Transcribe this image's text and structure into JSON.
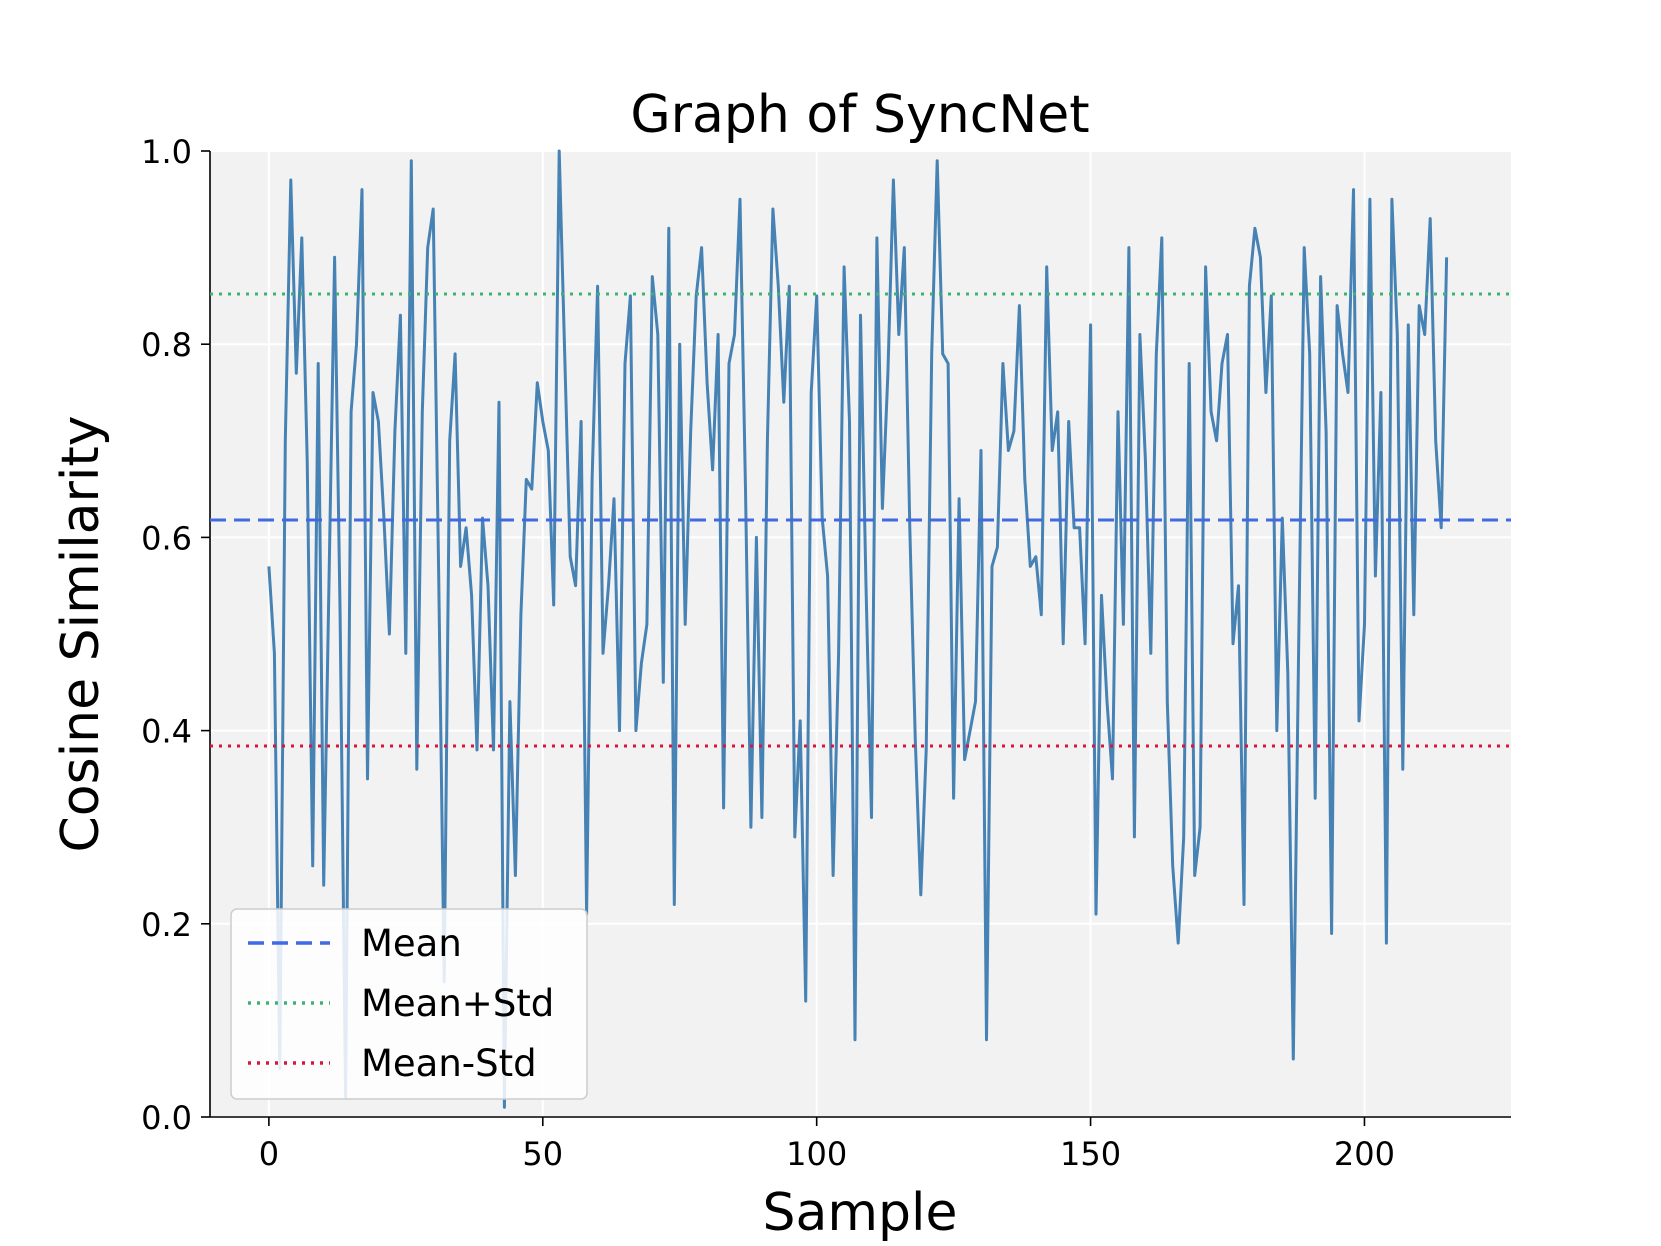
{
  "chart_data": {
    "type": "line",
    "title": "Graph of SyncNet",
    "xlabel": "Sample",
    "ylabel": "Cosine Similarity",
    "xlim": [
      -10.75,
      226.75
    ],
    "ylim": [
      0.0,
      1.0
    ],
    "xticks": [
      0,
      50,
      100,
      150,
      200
    ],
    "yticks": [
      0.0,
      0.2,
      0.4,
      0.6,
      0.8,
      1.0
    ],
    "xtick_labels": [
      "0",
      "50",
      "100",
      "150",
      "200"
    ],
    "ytick_labels": [
      "0.0",
      "0.2",
      "0.4",
      "0.6",
      "0.8",
      "1.0"
    ],
    "grid": true,
    "background": "#f2f2f2",
    "series": [
      {
        "color": "#4682b4",
        "x_start": 0,
        "values": [
          0.57,
          0.48,
          0.05,
          0.7,
          0.97,
          0.77,
          0.91,
          0.68,
          0.26,
          0.78,
          0.24,
          0.56,
          0.89,
          0.52,
          0.02,
          0.73,
          0.8,
          0.96,
          0.35,
          0.75,
          0.72,
          0.62,
          0.5,
          0.71,
          0.83,
          0.48,
          0.99,
          0.36,
          0.73,
          0.9,
          0.94,
          0.56,
          0.14,
          0.7,
          0.79,
          0.57,
          0.61,
          0.54,
          0.38,
          0.62,
          0.55,
          0.38,
          0.74,
          0.01,
          0.43,
          0.25,
          0.52,
          0.66,
          0.65,
          0.76,
          0.72,
          0.69,
          0.53,
          1.0,
          0.79,
          0.58,
          0.55,
          0.72,
          0.21,
          0.66,
          0.86,
          0.48,
          0.55,
          0.64,
          0.4,
          0.78,
          0.85,
          0.4,
          0.47,
          0.51,
          0.87,
          0.81,
          0.45,
          0.92,
          0.22,
          0.8,
          0.51,
          0.71,
          0.85,
          0.9,
          0.76,
          0.67,
          0.81,
          0.32,
          0.78,
          0.81,
          0.95,
          0.65,
          0.3,
          0.6,
          0.31,
          0.7,
          0.94,
          0.86,
          0.74,
          0.86,
          0.29,
          0.41,
          0.12,
          0.75,
          0.85,
          0.62,
          0.56,
          0.25,
          0.48,
          0.88,
          0.72,
          0.08,
          0.83,
          0.55,
          0.31,
          0.91,
          0.63,
          0.77,
          0.97,
          0.81,
          0.9,
          0.61,
          0.39,
          0.23,
          0.38,
          0.79,
          0.99,
          0.79,
          0.78,
          0.33,
          0.64,
          0.37,
          0.4,
          0.43,
          0.69,
          0.08,
          0.57,
          0.59,
          0.78,
          0.69,
          0.71,
          0.84,
          0.66,
          0.57,
          0.58,
          0.52,
          0.88,
          0.69,
          0.73,
          0.49,
          0.72,
          0.61,
          0.61,
          0.49,
          0.82,
          0.21,
          0.54,
          0.43,
          0.35,
          0.73,
          0.51,
          0.9,
          0.29,
          0.81,
          0.68,
          0.48,
          0.79,
          0.91,
          0.43,
          0.26,
          0.18,
          0.29,
          0.78,
          0.25,
          0.3,
          0.88,
          0.73,
          0.7,
          0.78,
          0.81,
          0.49,
          0.55,
          0.22,
          0.86,
          0.92,
          0.89,
          0.75,
          0.85,
          0.4,
          0.62,
          0.46,
          0.06,
          0.49,
          0.9,
          0.79,
          0.33,
          0.87,
          0.71,
          0.19,
          0.84,
          0.79,
          0.75,
          0.96,
          0.41,
          0.51,
          0.95,
          0.56,
          0.75,
          0.18,
          0.95,
          0.81,
          0.36,
          0.82,
          0.52,
          0.84,
          0.81,
          0.93,
          0.7,
          0.61,
          0.89
        ]
      },
      {
        "name": "Mean",
        "type": "hline",
        "value": 0.618,
        "color": "#4169e1",
        "style": "dashed"
      },
      {
        "name": "Mean+Std",
        "type": "hline",
        "value": 0.852,
        "color": "#3cb371",
        "style": "dotted"
      },
      {
        "name": "Mean-Std",
        "type": "hline",
        "value": 0.384,
        "color": "#dc143c",
        "style": "dotted"
      }
    ],
    "legend": {
      "location": "lower-left",
      "entries": [
        "Mean",
        "Mean+Std",
        "Mean-Std"
      ]
    }
  }
}
